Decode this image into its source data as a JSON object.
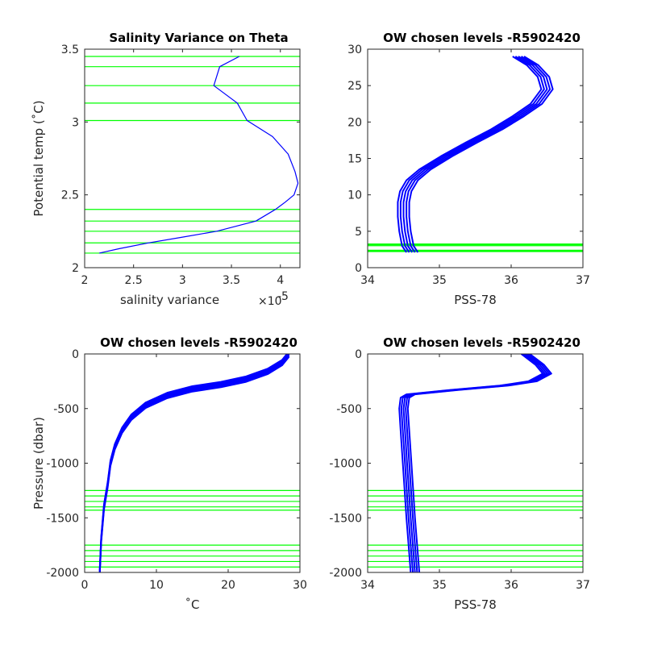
{
  "colors": {
    "profile": "#0000ff",
    "level": "#00ff00",
    "axis": "#262626"
  },
  "chart_data": [
    {
      "id": "tl",
      "type": "line",
      "title": "Salinity Variance on Theta",
      "xlabel": "salinity variance",
      "x_exponent_label": "×10",
      "x_exponent": "-5",
      "ylabel": "Potential temp (˚C)",
      "xlim": [
        2,
        4.2
      ],
      "ylim": [
        2,
        3.5
      ],
      "xticks": [
        2,
        2.5,
        3,
        3.5,
        4
      ],
      "xtick_labels": [
        "2",
        "2.5",
        "3",
        "3.5",
        "4"
      ],
      "yticks": [
        2,
        2.5,
        3,
        3.5
      ],
      "ytick_labels": [
        "2",
        "2.5",
        "3",
        "3.5"
      ],
      "series": [
        {
          "x": [
            3.58,
            3.38,
            3.32,
            3.56,
            3.66,
            3.92,
            4.08,
            4.15,
            4.18,
            4.14,
            4.05,
            3.95,
            3.75,
            3.35,
            3.0,
            2.65,
            2.35,
            2.15
          ],
          "y": [
            3.45,
            3.38,
            3.25,
            3.13,
            3.01,
            2.9,
            2.78,
            2.66,
            2.58,
            2.5,
            2.45,
            2.4,
            2.32,
            2.25,
            2.21,
            2.17,
            2.13,
            2.1
          ]
        }
      ],
      "hlines": [
        2.1,
        2.17,
        2.25,
        2.32,
        2.4,
        3.01,
        3.13,
        3.25,
        3.38,
        3.45
      ]
    },
    {
      "id": "tr",
      "type": "line",
      "title": "OW chosen levels -R5902420",
      "xlabel": "PSS-78",
      "ylabel": "",
      "xlim": [
        34,
        37
      ],
      "ylim": [
        0,
        30
      ],
      "xticks": [
        34,
        35,
        36,
        37
      ],
      "xtick_labels": [
        "34",
        "35",
        "36",
        "37"
      ],
      "yticks": [
        0,
        5,
        10,
        15,
        20,
        25,
        30
      ],
      "ytick_labels": [
        "0",
        "5",
        "10",
        "15",
        "20",
        "25",
        "30"
      ],
      "series": [
        {
          "x": [
            34.62,
            34.56,
            34.52,
            34.5,
            34.5,
            34.53,
            34.62,
            34.8,
            35.1,
            35.45,
            35.8,
            36.1,
            36.35,
            36.5,
            36.45,
            36.3,
            36.1
          ],
          "y": [
            2.1,
            3,
            5,
            7,
            9,
            10.5,
            12,
            13.5,
            15.3,
            17.2,
            19,
            20.8,
            22.5,
            24.5,
            26.2,
            27.8,
            29
          ]
        }
      ],
      "spread_x": [
        -0.08,
        -0.04,
        0,
        0.04,
        0.08
      ],
      "hlines": [
        2.21,
        2.32,
        2.4,
        3.01,
        3.13,
        3.25
      ]
    },
    {
      "id": "bl",
      "type": "line",
      "title": "OW chosen levels -R5902420",
      "xlabel": "˚C",
      "ylabel": "Pressure (dbar)",
      "xlim": [
        0,
        30
      ],
      "ylim": [
        -2000,
        0
      ],
      "xticks": [
        0,
        10,
        20,
        30
      ],
      "xtick_labels": [
        "0",
        "10",
        "20",
        "30"
      ],
      "yticks": [
        -2000,
        -1500,
        -1000,
        -500,
        0
      ],
      "ytick_labels": [
        "-2000",
        "-1500",
        "-1000",
        "-500",
        "0"
      ],
      "series": [
        {
          "x": [
            2.1,
            2.3,
            2.7,
            3.2,
            3.6,
            4.2,
            5.2,
            6.5,
            8.5,
            11.5,
            15,
            19,
            22.5,
            25.5,
            27.5,
            28.5
          ],
          "y": [
            -2000,
            -1700,
            -1400,
            -1200,
            -1000,
            -850,
            -700,
            -580,
            -470,
            -380,
            -320,
            -280,
            -230,
            -160,
            -80,
            0
          ]
        }
      ],
      "spread_y": [
        -25,
        -12,
        0,
        12,
        25
      ],
      "hlines": [
        -1250,
        -1300,
        -1350,
        -1400,
        -1430,
        -1750,
        -1800,
        -1850,
        -1900,
        -1950
      ]
    },
    {
      "id": "br",
      "type": "line",
      "title": "OW chosen levels -R5902420",
      "xlabel": "PSS-78",
      "ylabel": "",
      "xlim": [
        34,
        37
      ],
      "ylim": [
        -2000,
        0
      ],
      "xticks": [
        34,
        35,
        36,
        37
      ],
      "xtick_labels": [
        "34",
        "35",
        "36",
        "37"
      ],
      "yticks": [
        -2000,
        -1500,
        -1000,
        -500,
        0
      ],
      "ytick_labels": [
        "-2000",
        "-1500",
        "-1000",
        "-500",
        "0"
      ],
      "series": [
        {
          "x": [
            34.66,
            34.6,
            34.55,
            34.52,
            34.5,
            34.52,
            34.6,
            35.2,
            35.9,
            36.3,
            36.5,
            36.4,
            36.2
          ],
          "y": [
            -2000,
            -1500,
            -1000,
            -700,
            -500,
            -400,
            -370,
            -330,
            -290,
            -250,
            -180,
            -100,
            0
          ]
        }
      ],
      "spread_x": [
        -0.06,
        -0.03,
        0,
        0.03,
        0.06
      ],
      "hlines": [
        -1250,
        -1300,
        -1350,
        -1400,
        -1430,
        -1750,
        -1800,
        -1850,
        -1900,
        -1950
      ]
    }
  ]
}
